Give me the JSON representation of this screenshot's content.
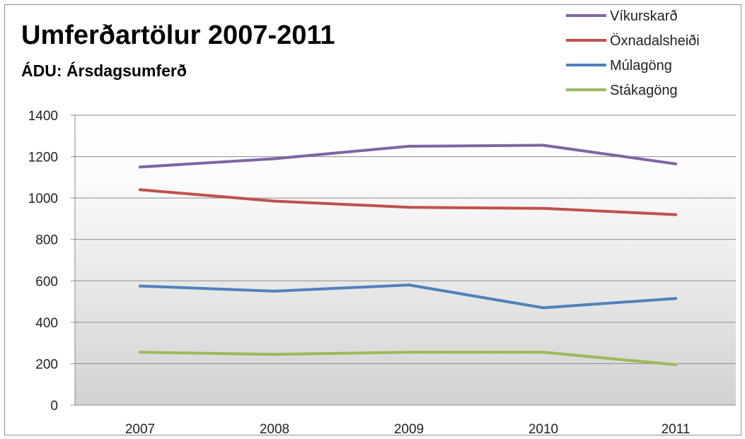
{
  "chart_data": {
    "type": "line",
    "title": "Umferðartölur 2007-2011",
    "subtitle": "ÁDU: Ársdagsumferð",
    "xlabel": "",
    "ylabel": "",
    "categories": [
      "2007",
      "2008",
      "2009",
      "2010",
      "2011"
    ],
    "ylim": [
      0,
      1400
    ],
    "yticks": [
      0,
      200,
      400,
      600,
      800,
      1000,
      1200,
      1400
    ],
    "grid": true,
    "legend_position": "top-right",
    "series": [
      {
        "name": "Víkurskarð",
        "color": "#8064A2",
        "values": [
          1150,
          1190,
          1250,
          1255,
          1165
        ]
      },
      {
        "name": "Öxnadalsheiði",
        "color": "#C0504D",
        "values": [
          1040,
          985,
          955,
          950,
          920
        ]
      },
      {
        "name": "Múlagöng",
        "color": "#4F81BD",
        "values": [
          575,
          550,
          580,
          470,
          515
        ]
      },
      {
        "name": "Stákagöng",
        "color": "#9BBB59",
        "values": [
          255,
          245,
          255,
          255,
          195
        ]
      }
    ]
  }
}
